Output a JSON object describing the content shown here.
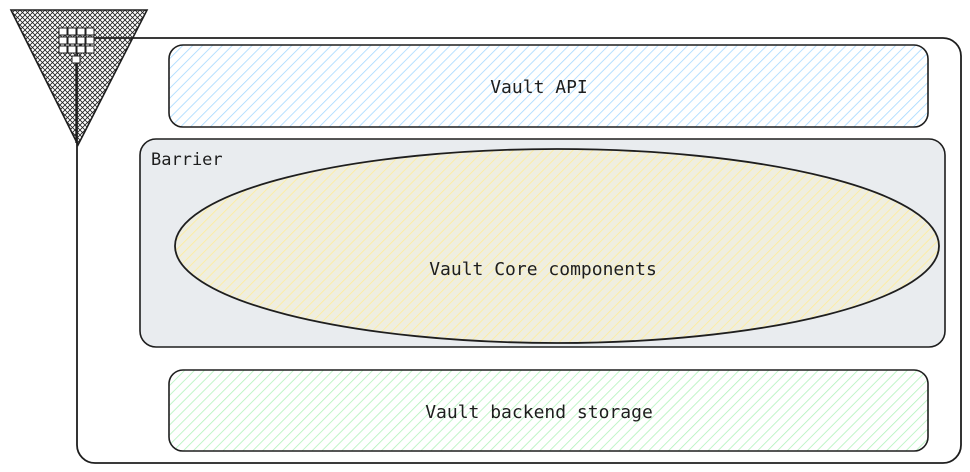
{
  "diagram": {
    "api_label": "Vault API",
    "barrier_label": "Barrier",
    "core_label": "Vault Core components",
    "storage_label": "Vault backend storage"
  },
  "colors": {
    "stroke": "#1e1e1e",
    "api_hatch": "#a5d8ff",
    "barrier_fill": "#e9ecef",
    "core_hatch": "#ffec99",
    "core_fill": "#efeee0",
    "storage_hatch": "#b2f2bb"
  },
  "icons": {
    "logo": "hashicorp-vault-logo-icon"
  }
}
